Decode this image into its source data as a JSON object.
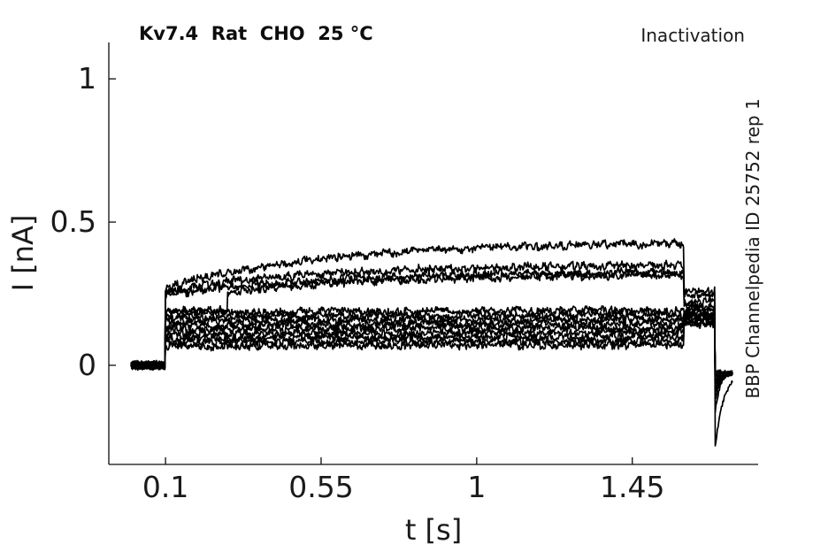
{
  "figure": {
    "title": "Kv7.4  Rat  CHO  25 °C",
    "corner_annotation": "Inactivation",
    "right_side_label": "BBP Channelpedia ID 25752 rep 1",
    "background_color": "#ffffff",
    "trace_color": "#000000",
    "axis_color": "#0d0d0d"
  },
  "chart_data": {
    "type": "line",
    "title": "Kv7.4  Rat  CHO  25 °C",
    "annotation": "Inactivation",
    "watermark": "BBP Channelpedia ID 25752 rep 1",
    "xlabel": "t [s]",
    "ylabel": "I [nA]",
    "xlim": [
      -0.064,
      1.814
    ],
    "ylim": [
      -0.346,
      1.127
    ],
    "xticks": {
      "values": [
        0.1,
        0.55,
        1.0,
        1.45
      ],
      "labels": [
        "0.1",
        "0.55",
        "1",
        "1.45"
      ]
    },
    "yticks": {
      "values": [
        0,
        0.5,
        1.0
      ],
      "labels": [
        "0",
        "0.5",
        "1"
      ]
    },
    "grid": false,
    "legend": null,
    "protocol": {
      "sweep_start_s": 0.0,
      "pulse_start_s": 0.1,
      "test_pulse_start_s": 1.6,
      "tail_start_s": 1.69,
      "sweep_end_s": 1.74,
      "baseline_nA": 0,
      "tail_settle_nA": -0.025
    },
    "noise_nA": {
      "high_freq": 0.01,
      "low_freq": 0.008,
      "tail": 0.006
    },
    "sweeps": [
      {
        "cond_start": 0.27,
        "cond_end": 0.425,
        "test": 0.26,
        "tail_peak": -0.29,
        "tail_tau": 0.024
      },
      {
        "cond_start": 0.26,
        "cond_end": 0.35,
        "test": 0.245,
        "tail_peak": -0.16,
        "tail_tau": 0.014
      },
      {
        "cond_start": 0.245,
        "cond_end": 0.325,
        "test": 0.225,
        "tail_peak": -0.12,
        "tail_tau": 0.014
      },
      {
        "cond_start": 0.19,
        "cond_end": 0.315,
        "test": 0.205,
        "tail_peak": -0.1,
        "tail_tau": 0.014,
        "step_t": 0.28,
        "step_level": 0.255
      },
      {
        "cond_start": 0.183,
        "cond_end": 0.19,
        "test": 0.192,
        "tail_peak": -0.085,
        "tail_tau": 0.014
      },
      {
        "cond_start": 0.168,
        "cond_end": 0.175,
        "test": 0.185,
        "tail_peak": -0.075,
        "tail_tau": 0.014
      },
      {
        "cond_start": 0.153,
        "cond_end": 0.16,
        "test": 0.178,
        "tail_peak": -0.066,
        "tail_tau": 0.014
      },
      {
        "cond_start": 0.138,
        "cond_end": 0.145,
        "test": 0.172,
        "tail_peak": -0.058,
        "tail_tau": 0.014
      },
      {
        "cond_start": 0.123,
        "cond_end": 0.13,
        "test": 0.166,
        "tail_peak": -0.05,
        "tail_tau": 0.014
      },
      {
        "cond_start": 0.108,
        "cond_end": 0.115,
        "test": 0.16,
        "tail_peak": -0.043,
        "tail_tau": 0.014
      },
      {
        "cond_start": 0.093,
        "cond_end": 0.1,
        "test": 0.155,
        "tail_peak": -0.036,
        "tail_tau": 0.014
      },
      {
        "cond_start": 0.079,
        "cond_end": 0.085,
        "test": 0.15,
        "tail_peak": -0.03,
        "tail_tau": 0.014
      },
      {
        "cond_start": 0.065,
        "cond_end": 0.071,
        "test": 0.146,
        "tail_peak": -0.024,
        "tail_tau": 0.014
      }
    ]
  }
}
